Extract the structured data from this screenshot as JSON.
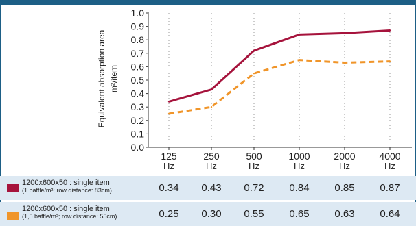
{
  "chart_data": {
    "type": "line",
    "ylabel": "Equivalent absorption area",
    "yunit": "m²/item",
    "ylim": [
      0.0,
      1.0
    ],
    "yticks": [
      "1.0",
      "0.9",
      "0.8",
      "0.7",
      "0.6",
      "0.5",
      "0.4",
      "0.3",
      "0.2",
      "0.1",
      "0.0"
    ],
    "categories": [
      "125",
      "250",
      "500",
      "1000",
      "2000",
      "4000"
    ],
    "category_unit": "Hz",
    "grid": "vertical-dotted",
    "series": [
      {
        "name": "1200x600x50 : single item",
        "subname": "(1 baffle/m²; row distance: 83cm)",
        "color": "#a6133c",
        "style": "solid",
        "values": [
          0.34,
          0.43,
          0.72,
          0.84,
          0.85,
          0.87
        ],
        "value_labels": [
          "0.34",
          "0.43",
          "0.72",
          "0.84",
          "0.85",
          "0.87"
        ]
      },
      {
        "name": "1200x600x50 : single item",
        "subname": "(1,5 baffle/m²; row distance: 55cm)",
        "color": "#f0952a",
        "style": "dashed",
        "values": [
          0.25,
          0.3,
          0.55,
          0.65,
          0.63,
          0.64
        ],
        "value_labels": [
          "0.25",
          "0.30",
          "0.55",
          "0.65",
          "0.63",
          "0.64"
        ]
      }
    ]
  }
}
